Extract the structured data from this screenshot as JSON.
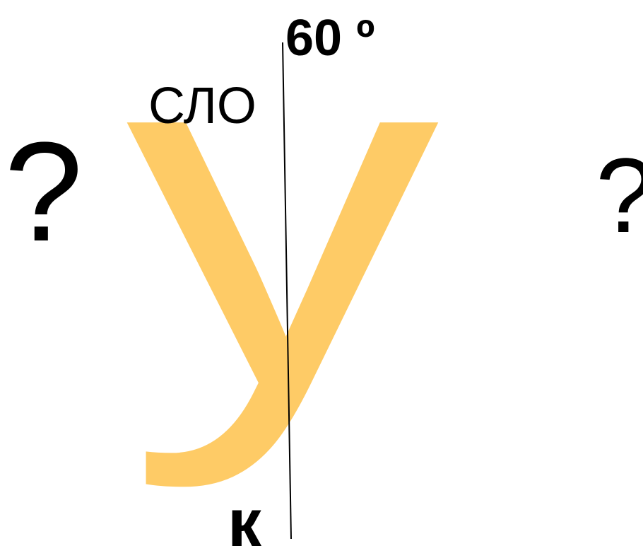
{
  "angle_label": "60 º",
  "top_label": "СЛО",
  "left_question": "?",
  "right_question": "?",
  "big_letter": "у",
  "bottom_label": "к"
}
